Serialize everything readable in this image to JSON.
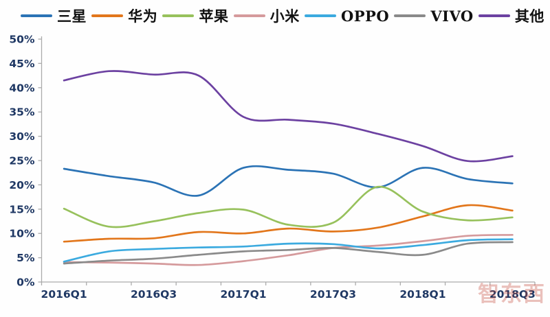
{
  "chart_data": {
    "type": "line",
    "title": "",
    "categories": [
      "2016Q1",
      "2016Q2",
      "2016Q3",
      "2016Q4",
      "2017Q1",
      "2017Q2",
      "2017Q3",
      "2017Q4",
      "2018Q1",
      "2018Q2",
      "2018Q3"
    ],
    "x_axis_tick_labels": [
      "2016Q1",
      "2016Q3",
      "2017Q1",
      "2017Q3",
      "2018Q1",
      "2018Q3"
    ],
    "y_axis_tick_labels": [
      "0%",
      "5%",
      "10%",
      "15%",
      "20%",
      "25%",
      "30%",
      "35%",
      "40%",
      "45%",
      "50%"
    ],
    "ylim": [
      0,
      50
    ],
    "y_step": 5,
    "unit": "percent",
    "grid": false,
    "smooth": true,
    "legend_position": "top",
    "series": [
      {
        "id": "samsung",
        "name": "三星",
        "color": "#2B73B5",
        "values": [
          23.3,
          21.8,
          20.5,
          17.8,
          23.5,
          23.1,
          22.3,
          19.5,
          23.5,
          21.2,
          20.3
        ]
      },
      {
        "id": "huawei",
        "name": "华为",
        "color": "#E2761B",
        "values": [
          8.3,
          8.9,
          9.0,
          10.3,
          10.0,
          11.0,
          10.4,
          11.2,
          13.5,
          15.8,
          14.7
        ]
      },
      {
        "id": "apple",
        "name": "苹果",
        "color": "#97C15C",
        "values": [
          15.1,
          11.4,
          12.5,
          14.2,
          14.9,
          11.8,
          12.2,
          19.6,
          14.5,
          12.7,
          13.3
        ]
      },
      {
        "id": "xiaomi",
        "name": "小米",
        "color": "#D59A9C",
        "values": [
          4.1,
          4.0,
          3.8,
          3.5,
          4.3,
          5.5,
          7.0,
          7.5,
          8.4,
          9.5,
          9.7
        ]
      },
      {
        "id": "oppo",
        "name": "OPPO",
        "color": "#3BAADF",
        "values": [
          4.2,
          6.3,
          6.8,
          7.1,
          7.3,
          7.9,
          7.8,
          6.9,
          7.6,
          8.6,
          8.8
        ]
      },
      {
        "id": "vivo",
        "name": "VIVO",
        "color": "#8A8A8A",
        "values": [
          3.8,
          4.4,
          4.8,
          5.6,
          6.3,
          6.6,
          7.0,
          6.2,
          5.6,
          7.9,
          8.2
        ]
      },
      {
        "id": "others",
        "name": "其他",
        "color": "#6C41A1",
        "values": [
          41.5,
          43.4,
          42.7,
          42.5,
          34.0,
          33.4,
          32.6,
          30.5,
          28.0,
          24.9,
          25.9
        ]
      }
    ]
  },
  "axis_style": {
    "label_color": "#1F3864",
    "line_color": "#ABABAB"
  },
  "watermark": {
    "text": "智东西"
  }
}
